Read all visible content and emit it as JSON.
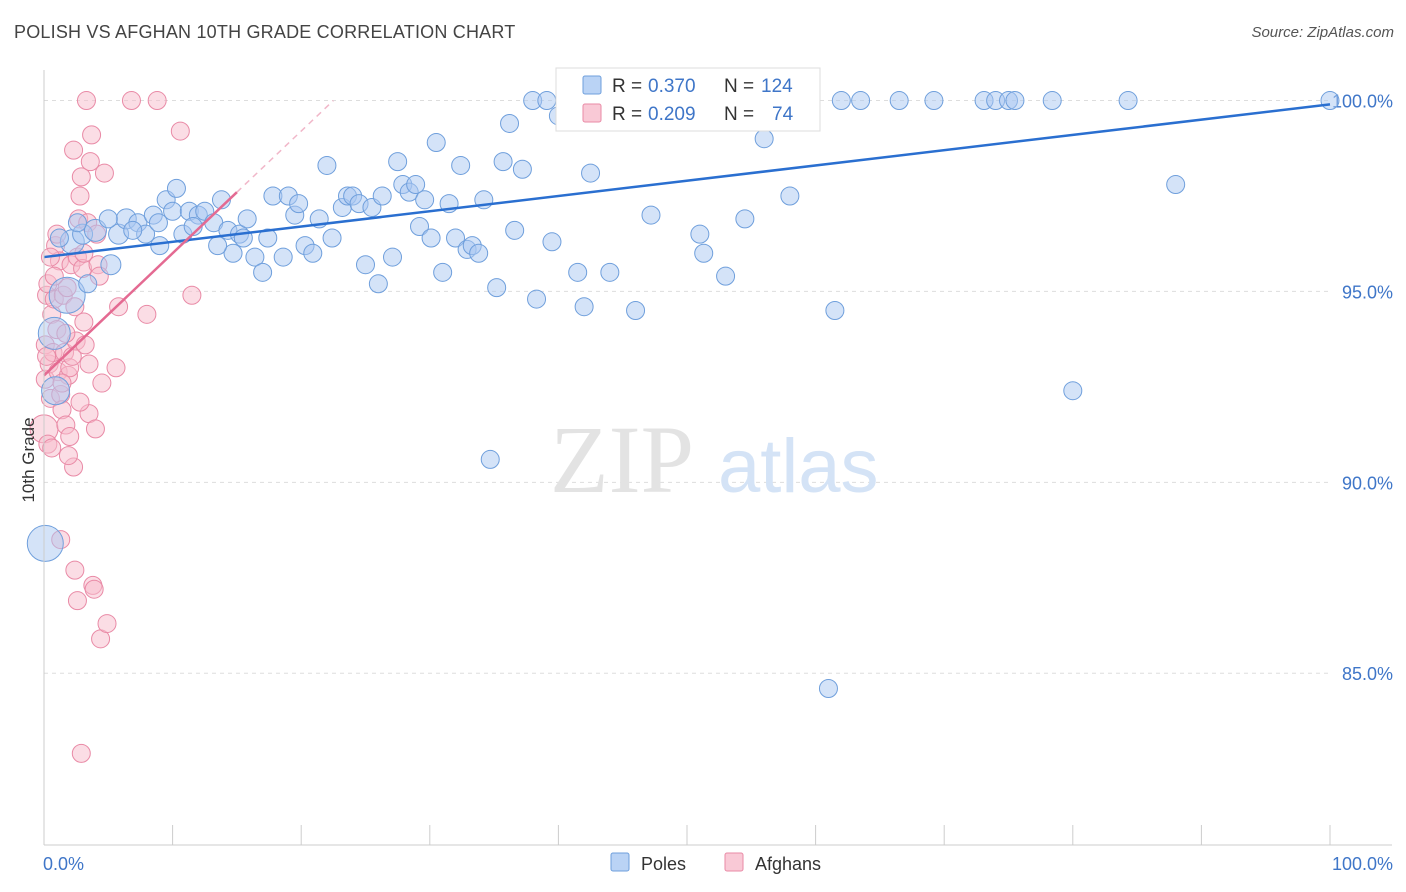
{
  "header": {
    "title": "POLISH VS AFGHAN 10TH GRADE CORRELATION CHART",
    "source": "Source: ZipAtlas.com"
  },
  "watermark": {
    "part1": "ZIP",
    "part2": "atlas"
  },
  "legend_box": {
    "rows": [
      {
        "r_label": "R = ",
        "r_value": "0.370",
        "n_label": "N = ",
        "n_value": "124"
      },
      {
        "r_label": "R = ",
        "r_value": "0.209",
        "n_label": "N = ",
        "n_value": "74"
      }
    ]
  },
  "colors": {
    "poles_fill": "#a9c8f2",
    "poles_stroke": "#6f9fdc",
    "poles_line": "#2a6fd0",
    "afghans_fill": "#f7bccc",
    "afghans_stroke": "#e98aa6",
    "afghans_line": "#e46a92",
    "axis_text": "#3f76c8",
    "grid": "#dddddd"
  },
  "chart_data": {
    "type": "scatter",
    "title": "POLISH VS AFGHAN 10TH GRADE CORRELATION CHART",
    "xlabel": "",
    "ylabel": "10th Grade",
    "xlim": [
      0,
      100
    ],
    "ylim": [
      80.5,
      100.8
    ],
    "x_tick_labels": [
      "0.0%",
      "100.0%"
    ],
    "y_ticks": [
      85,
      90,
      95,
      100
    ],
    "y_tick_labels": [
      "85.0%",
      "90.0%",
      "95.0%",
      "100.0%"
    ],
    "grid": true,
    "legend_position": "bottom-center",
    "series": [
      {
        "name": "Poles",
        "r": 0.37,
        "n": 124,
        "trend": {
          "x": [
            0,
            100
          ],
          "y": [
            95.9,
            99.9
          ]
        },
        "points": [
          [
            0.1,
            88.4,
            18
          ],
          [
            0.8,
            93.9,
            16
          ],
          [
            0.9,
            92.4,
            14
          ],
          [
            1.8,
            94.9,
            18
          ],
          [
            2.2,
            96.3,
            12
          ],
          [
            3.0,
            96.5,
            10
          ],
          [
            4.0,
            96.6,
            11
          ],
          [
            5.2,
            95.7,
            10
          ],
          [
            5.8,
            96.5,
            10
          ],
          [
            6.4,
            96.9,
            10
          ],
          [
            7.3,
            96.8,
            9
          ],
          [
            7.9,
            96.5,
            9
          ],
          [
            8.5,
            97.0,
            9
          ],
          [
            8.9,
            96.8,
            9
          ],
          [
            9.5,
            97.4,
            9
          ],
          [
            10.0,
            97.1,
            9
          ],
          [
            10.3,
            97.7,
            9
          ],
          [
            10.8,
            96.5,
            9
          ],
          [
            11.3,
            97.1,
            9
          ],
          [
            12.0,
            97.0,
            9
          ],
          [
            12.5,
            97.1,
            9
          ],
          [
            13.2,
            96.8,
            9
          ],
          [
            13.8,
            97.4,
            9
          ],
          [
            14.3,
            96.6,
            9
          ],
          [
            14.7,
            96.0,
            9
          ],
          [
            15.2,
            96.5,
            9
          ],
          [
            15.8,
            96.9,
            9
          ],
          [
            16.4,
            95.9,
            9
          ],
          [
            17.0,
            95.5,
            9
          ],
          [
            17.4,
            96.4,
            9
          ],
          [
            17.8,
            97.5,
            9
          ],
          [
            18.6,
            95.9,
            9
          ],
          [
            19.0,
            97.5,
            9
          ],
          [
            19.5,
            97.0,
            9
          ],
          [
            19.8,
            97.3,
            9
          ],
          [
            20.3,
            96.2,
            9
          ],
          [
            20.9,
            96.0,
            9
          ],
          [
            21.4,
            96.9,
            9
          ],
          [
            22.0,
            98.3,
            9
          ],
          [
            22.4,
            96.4,
            9
          ],
          [
            23.2,
            97.2,
            9
          ],
          [
            23.6,
            97.5,
            9
          ],
          [
            24.0,
            97.5,
            9
          ],
          [
            24.5,
            97.3,
            9
          ],
          [
            25.0,
            95.7,
            9
          ],
          [
            25.5,
            97.2,
            9
          ],
          [
            26.0,
            95.2,
            9
          ],
          [
            26.3,
            97.5,
            9
          ],
          [
            27.1,
            95.9,
            9
          ],
          [
            27.5,
            98.4,
            9
          ],
          [
            27.9,
            97.8,
            9
          ],
          [
            28.4,
            97.6,
            9
          ],
          [
            28.9,
            97.8,
            9
          ],
          [
            29.2,
            96.7,
            9
          ],
          [
            29.6,
            97.4,
            9
          ],
          [
            30.1,
            96.4,
            9
          ],
          [
            30.5,
            98.9,
            9
          ],
          [
            31.0,
            95.5,
            9
          ],
          [
            31.5,
            97.3,
            9
          ],
          [
            32.0,
            96.4,
            9
          ],
          [
            32.4,
            98.3,
            9
          ],
          [
            32.9,
            96.1,
            9
          ],
          [
            33.3,
            96.2,
            9
          ],
          [
            33.8,
            96.0,
            9
          ],
          [
            34.2,
            97.4,
            9
          ],
          [
            34.7,
            90.6,
            9
          ],
          [
            35.2,
            95.1,
            9
          ],
          [
            35.7,
            98.4,
            9
          ],
          [
            36.2,
            99.4,
            9
          ],
          [
            36.6,
            96.6,
            9
          ],
          [
            37.2,
            98.2,
            9
          ],
          [
            38.0,
            100.0,
            9
          ],
          [
            38.3,
            94.8,
            9
          ],
          [
            39.1,
            100.0,
            9
          ],
          [
            39.5,
            96.3,
            9
          ],
          [
            40.0,
            99.6,
            9
          ],
          [
            41.0,
            100.0,
            9
          ],
          [
            41.5,
            95.5,
            9
          ],
          [
            42.0,
            94.6,
            9
          ],
          [
            42.5,
            98.1,
            9
          ],
          [
            43.1,
            100.0,
            9
          ],
          [
            44.0,
            95.5,
            9
          ],
          [
            45.0,
            100.0,
            9
          ],
          [
            46.0,
            94.5,
            9
          ],
          [
            46.5,
            100.0,
            9
          ],
          [
            47.2,
            97.0,
            9
          ],
          [
            48.0,
            100.0,
            9
          ],
          [
            49.0,
            100.0,
            9
          ],
          [
            50.0,
            100.0,
            9
          ],
          [
            51.0,
            96.5,
            9
          ],
          [
            51.3,
            96.0,
            9
          ],
          [
            52.0,
            100.0,
            9
          ],
          [
            53.0,
            95.4,
            9
          ],
          [
            54.0,
            100.0,
            9
          ],
          [
            54.5,
            96.9,
            9
          ],
          [
            55.0,
            100.0,
            9
          ],
          [
            56.0,
            99.0,
            9
          ],
          [
            57.0,
            100.0,
            9
          ],
          [
            58.0,
            97.5,
            9
          ],
          [
            59.0,
            100.0,
            9
          ],
          [
            61.0,
            84.6,
            9
          ],
          [
            61.5,
            94.5,
            9
          ],
          [
            62.0,
            100.0,
            9
          ],
          [
            63.5,
            100.0,
            9
          ],
          [
            66.5,
            100.0,
            9
          ],
          [
            69.2,
            100.0,
            9
          ],
          [
            73.1,
            100.0,
            9
          ],
          [
            74.0,
            100.0,
            9
          ],
          [
            75.0,
            100.0,
            9
          ],
          [
            75.5,
            100.0,
            9
          ],
          [
            78.4,
            100.0,
            9
          ],
          [
            80.0,
            92.4,
            9
          ],
          [
            84.3,
            100.0,
            9
          ],
          [
            88.0,
            97.8,
            9
          ],
          [
            100.0,
            100.0,
            9
          ],
          [
            1.2,
            96.4,
            9
          ],
          [
            2.6,
            96.8,
            9
          ],
          [
            3.4,
            95.2,
            9
          ],
          [
            5.0,
            96.9,
            9
          ],
          [
            6.9,
            96.6,
            9
          ],
          [
            9.0,
            96.2,
            9
          ],
          [
            11.6,
            96.7,
            9
          ],
          [
            13.5,
            96.2,
            9
          ],
          [
            15.5,
            96.4,
            9
          ]
        ]
      },
      {
        "name": "Afghans",
        "r": 0.209,
        "n": 74,
        "trend": {
          "x": [
            0,
            15
          ],
          "y": [
            92.8,
            97.6
          ]
        },
        "trend_dashed": {
          "x": [
            15,
            22.5
          ],
          "y": [
            97.6,
            100.0
          ]
        },
        "points": [
          [
            0.0,
            91.4,
            14
          ],
          [
            0.1,
            92.7,
            9
          ],
          [
            0.1,
            93.6,
            9
          ],
          [
            0.2,
            94.9,
            9
          ],
          [
            0.3,
            95.2,
            9
          ],
          [
            0.4,
            93.1,
            9
          ],
          [
            0.5,
            92.2,
            9
          ],
          [
            0.6,
            94.4,
            9
          ],
          [
            0.7,
            93.4,
            9
          ],
          [
            0.8,
            94.8,
            9
          ],
          [
            0.9,
            96.2,
            9
          ],
          [
            1.0,
            96.5,
            9
          ],
          [
            1.1,
            92.9,
            9
          ],
          [
            1.2,
            95.8,
            9
          ],
          [
            1.3,
            92.3,
            9
          ],
          [
            1.3,
            88.5,
            9
          ],
          [
            1.4,
            91.9,
            9
          ],
          [
            1.5,
            94.9,
            9
          ],
          [
            1.6,
            93.4,
            9
          ],
          [
            1.7,
            91.5,
            9
          ],
          [
            1.8,
            95.1,
            9
          ],
          [
            1.9,
            92.8,
            9
          ],
          [
            2.0,
            93.0,
            9
          ],
          [
            2.1,
            95.7,
            9
          ],
          [
            2.2,
            93.3,
            9
          ],
          [
            2.3,
            90.4,
            9
          ],
          [
            2.3,
            98.7,
            9
          ],
          [
            2.4,
            87.7,
            9
          ],
          [
            2.5,
            93.7,
            9
          ],
          [
            2.6,
            95.9,
            9
          ],
          [
            2.6,
            86.9,
            9
          ],
          [
            2.7,
            96.9,
            9
          ],
          [
            2.8,
            97.5,
            9
          ],
          [
            2.9,
            98.0,
            9
          ],
          [
            2.9,
            82.9,
            9
          ],
          [
            3.0,
            95.6,
            9
          ],
          [
            3.1,
            96.0,
            9
          ],
          [
            3.2,
            93.6,
            9
          ],
          [
            3.3,
            100.0,
            9
          ],
          [
            3.4,
            96.8,
            9
          ],
          [
            3.5,
            91.8,
            9
          ],
          [
            3.6,
            98.4,
            9
          ],
          [
            3.7,
            99.1,
            9
          ],
          [
            3.8,
            87.3,
            9
          ],
          [
            3.9,
            87.2,
            9
          ],
          [
            4.0,
            91.4,
            9
          ],
          [
            4.1,
            96.5,
            9
          ],
          [
            4.2,
            95.7,
            9
          ],
          [
            4.3,
            95.4,
            9
          ],
          [
            4.4,
            85.9,
            9
          ],
          [
            4.5,
            92.6,
            9
          ],
          [
            4.7,
            98.1,
            9
          ],
          [
            4.9,
            86.3,
            9
          ],
          [
            5.6,
            93.0,
            9
          ],
          [
            5.8,
            94.6,
            9
          ],
          [
            6.8,
            100.0,
            9
          ],
          [
            8.0,
            94.4,
            9
          ],
          [
            8.8,
            100.0,
            9
          ],
          [
            10.6,
            99.2,
            9
          ],
          [
            11.5,
            94.9,
            9
          ],
          [
            0.3,
            91.0,
            9
          ],
          [
            0.6,
            90.9,
            9
          ],
          [
            1.0,
            94.0,
            9
          ],
          [
            1.4,
            92.6,
            9
          ],
          [
            1.7,
            93.9,
            9
          ],
          [
            2.0,
            91.2,
            9
          ],
          [
            2.4,
            94.6,
            9
          ],
          [
            2.8,
            92.1,
            9
          ],
          [
            3.1,
            94.2,
            9
          ],
          [
            0.2,
            93.3,
            9
          ],
          [
            0.8,
            95.4,
            9
          ],
          [
            1.9,
            90.7,
            9
          ],
          [
            3.5,
            93.1,
            9
          ],
          [
            0.5,
            95.9,
            9
          ]
        ]
      }
    ]
  }
}
